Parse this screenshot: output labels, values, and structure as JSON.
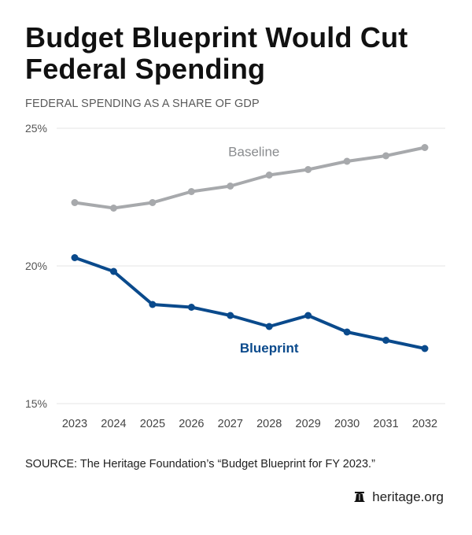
{
  "header": {
    "title": "Budget Blueprint Would Cut Federal Spending",
    "subtitle": "FEDERAL SPENDING AS A SHARE OF GDP"
  },
  "footer": {
    "source": "SOURCE: The Heritage Foundation’s “Budget Blueprint for FY 2023.”",
    "brand": "heritage.org",
    "brand_icon": "liberty-bell-icon"
  },
  "chart_data": {
    "type": "line",
    "title": "Budget Blueprint Would Cut Federal Spending",
    "subtitle": "FEDERAL SPENDING AS A SHARE OF GDP",
    "xlabel": "",
    "ylabel": "",
    "x": [
      "2023",
      "2024",
      "2025",
      "2026",
      "2027",
      "2028",
      "2029",
      "2030",
      "2031",
      "2032"
    ],
    "ylim": [
      15,
      25
    ],
    "yticks": [
      15,
      20,
      25
    ],
    "ytick_labels": [
      "15%",
      "20%",
      "25%"
    ],
    "grid": true,
    "series": [
      {
        "name": "Baseline",
        "color": "#a7a9ac",
        "values": [
          22.3,
          22.1,
          22.3,
          22.7,
          22.9,
          23.3,
          23.5,
          23.8,
          24.0,
          24.3
        ]
      },
      {
        "name": "Blueprint",
        "color": "#0a4a8c",
        "values": [
          20.3,
          19.8,
          18.6,
          18.5,
          18.2,
          17.8,
          18.2,
          17.6,
          17.3,
          17.0
        ]
      }
    ],
    "annotations": [
      {
        "text": "Baseline",
        "series": "Baseline",
        "near_x": "2027",
        "placement": "above"
      },
      {
        "text": "Blueprint",
        "series": "Blueprint",
        "near_x": "2028",
        "placement": "below"
      }
    ],
    "source": "SOURCE: The Heritage Foundation’s “Budget Blueprint for FY 2023.”"
  }
}
